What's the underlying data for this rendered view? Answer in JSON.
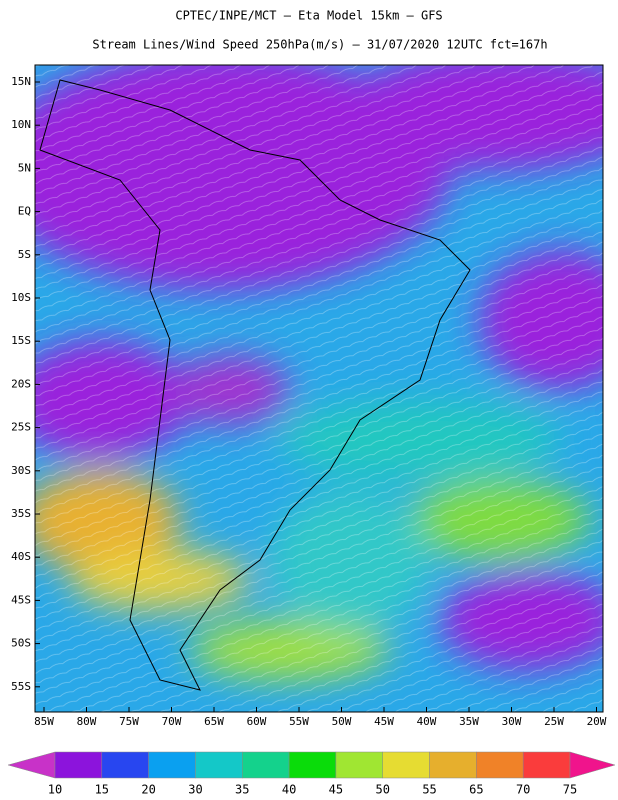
{
  "header": {
    "title": "CPTEC/INPE/MCT —  Eta Model 15km — GFS",
    "subtitle": "Stream Lines/Wind Speed 250hPa(m/s) — 31/07/2020 12UTC fct=167h"
  },
  "map": {
    "lat_labels": [
      "15N",
      "10N",
      "5N",
      "EQ",
      "5S",
      "10S",
      "15S",
      "20S",
      "25S",
      "30S",
      "35S",
      "40S",
      "45S",
      "50S",
      "55S"
    ],
    "lon_labels": [
      "85W",
      "80W",
      "75W",
      "70W",
      "65W",
      "60W",
      "55W",
      "50W",
      "45W",
      "40W",
      "35W",
      "30W",
      "25W",
      "20W"
    ]
  },
  "colorbar": {
    "labels": [
      10,
      15,
      20,
      30,
      35,
      40,
      45,
      50,
      55,
      65,
      70,
      75
    ],
    "colors": [
      "#c832c8",
      "#8c14dc",
      "#2846f0",
      "#0aa0f0",
      "#14c8c8",
      "#14d28c",
      "#0adc0a",
      "#a0e632",
      "#e6dc32",
      "#e6af2d",
      "#f08228",
      "#fa3c3c",
      "#f0148c"
    ]
  }
}
